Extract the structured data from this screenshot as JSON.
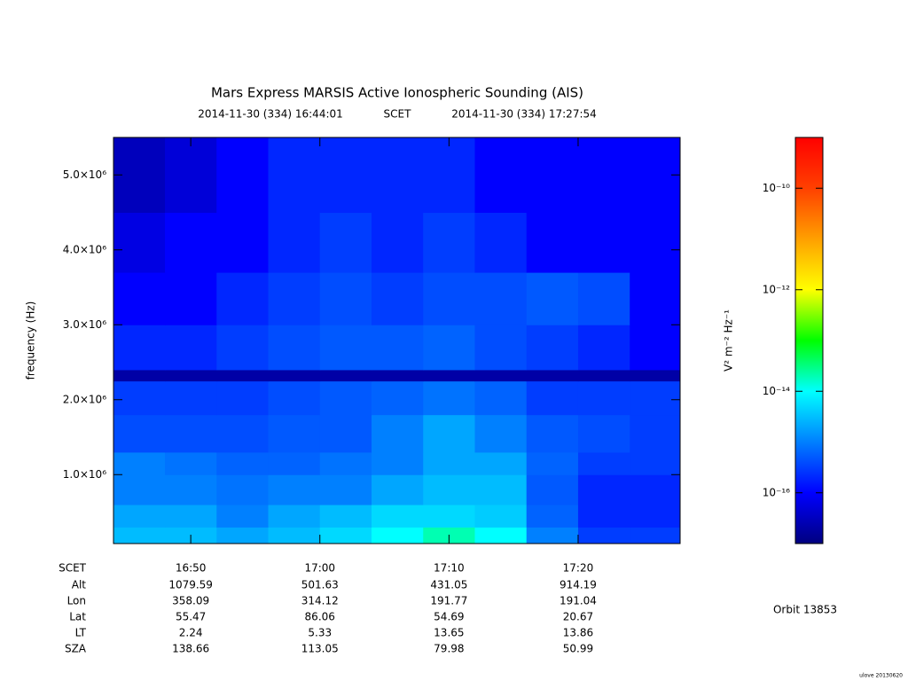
{
  "chart_data": {
    "type": "heatmap",
    "title": "Mars Express MARSIS Active Ionospheric Sounding (AIS)",
    "subtitle_start": "2014-11-30 (334) 16:44:01",
    "subtitle_frame": "SCET",
    "subtitle_end": "2014-11-30 (334) 17:27:54",
    "ylabel": "frequency (Hz)",
    "xlim": [
      "16:44:01",
      "17:27:54"
    ],
    "xticks": [
      "16:50",
      "17:00",
      "17:10",
      "17:20"
    ],
    "ylim": [
      80000,
      5500000
    ],
    "yticks": [
      {
        "value": 1000000,
        "label": "1.0×10⁶"
      },
      {
        "value": 2000000,
        "label": "2.0×10⁶"
      },
      {
        "value": 3000000,
        "label": "3.0×10⁶"
      },
      {
        "value": 4000000,
        "label": "4.0×10⁶"
      },
      {
        "value": 5000000,
        "label": "5.0×10⁶"
      }
    ],
    "x_bins": [
      "16:44:01",
      "16:48",
      "16:52",
      "16:56",
      "17:00",
      "17:04",
      "17:08",
      "17:12",
      "17:16",
      "17:20",
      "17:24",
      "17:27:54"
    ],
    "y_bins": [
      80000,
      300000,
      600000,
      1000000,
      1300000,
      1800000,
      2250000,
      2400000,
      3000000,
      3700000,
      4500000,
      5500000
    ],
    "z": [
      [
        3e-15,
        3e-15,
        2e-15,
        3e-15,
        5e-15,
        1e-14,
        2e-14,
        1e-14,
        1e-15,
        3e-16,
        3e-16
      ],
      [
        2e-15,
        2e-15,
        1e-15,
        2e-15,
        3e-15,
        5e-15,
        5e-15,
        4e-15,
        6e-16,
        2e-16,
        2e-16
      ],
      [
        1e-15,
        1e-15,
        8e-16,
        1e-15,
        1e-15,
        2e-15,
        3e-15,
        3e-15,
        5e-16,
        2e-16,
        2e-16
      ],
      [
        1e-15,
        8e-16,
        6e-16,
        6e-16,
        8e-16,
        1e-15,
        2e-15,
        2e-15,
        6e-16,
        3e-16,
        3e-16
      ],
      [
        4e-16,
        4e-16,
        4e-16,
        5e-16,
        5e-16,
        1e-15,
        2e-15,
        1e-15,
        5e-16,
        4e-16,
        3e-16
      ],
      [
        3e-16,
        3e-16,
        3e-16,
        4e-16,
        5e-16,
        6e-16,
        8e-16,
        6e-16,
        3e-16,
        3e-16,
        3e-16
      ],
      [
        2e-17,
        2e-17,
        2e-17,
        2e-17,
        2e-17,
        2e-17,
        2e-17,
        2e-17,
        2e-17,
        2e-17,
        2e-17
      ],
      [
        2e-16,
        2e-16,
        3e-16,
        4e-16,
        5e-16,
        5e-16,
        6e-16,
        4e-16,
        3e-16,
        2e-16,
        1e-16
      ],
      [
        1e-16,
        1e-16,
        2e-16,
        3e-16,
        4e-16,
        3e-16,
        4e-16,
        4e-16,
        5e-16,
        4e-16,
        1e-16
      ],
      [
        6e-17,
        1e-16,
        1e-16,
        2e-16,
        3e-16,
        2e-16,
        3e-16,
        2e-16,
        1e-16,
        1e-16,
        1e-16
      ],
      [
        3e-17,
        5e-17,
        1e-16,
        2e-16,
        2e-16,
        2e-16,
        2e-16,
        1e-16,
        1e-16,
        1e-16,
        1e-16
      ]
    ],
    "zlim": [
      1e-17,
      1e-09
    ],
    "zlog": true,
    "zticks": [
      {
        "value": 1e-16,
        "label": "10⁻¹⁶"
      },
      {
        "value": 1e-14,
        "label": "10⁻¹⁴"
      },
      {
        "value": 1e-12,
        "label": "10⁻¹²"
      },
      {
        "value": 1e-10,
        "label": "10⁻¹⁰"
      }
    ],
    "zlabel": "V² m⁻² Hz⁻¹",
    "xlabel": "SCET",
    "ephemeris": [
      {
        "label": "Alt",
        "values": [
          1079.59,
          501.63,
          431.05,
          914.19
        ]
      },
      {
        "label": "Lon",
        "values": [
          358.09,
          314.12,
          191.77,
          191.04
        ]
      },
      {
        "label": "Lat",
        "values": [
          55.47,
          86.06,
          54.69,
          20.67
        ]
      },
      {
        "label": "LT",
        "values": [
          2.24,
          5.33,
          13.65,
          13.86
        ]
      },
      {
        "label": "SZA",
        "values": [
          138.66,
          113.05,
          79.98,
          50.99
        ]
      }
    ],
    "orbit": "Orbit 13853",
    "footer": "ulove 20130620"
  }
}
